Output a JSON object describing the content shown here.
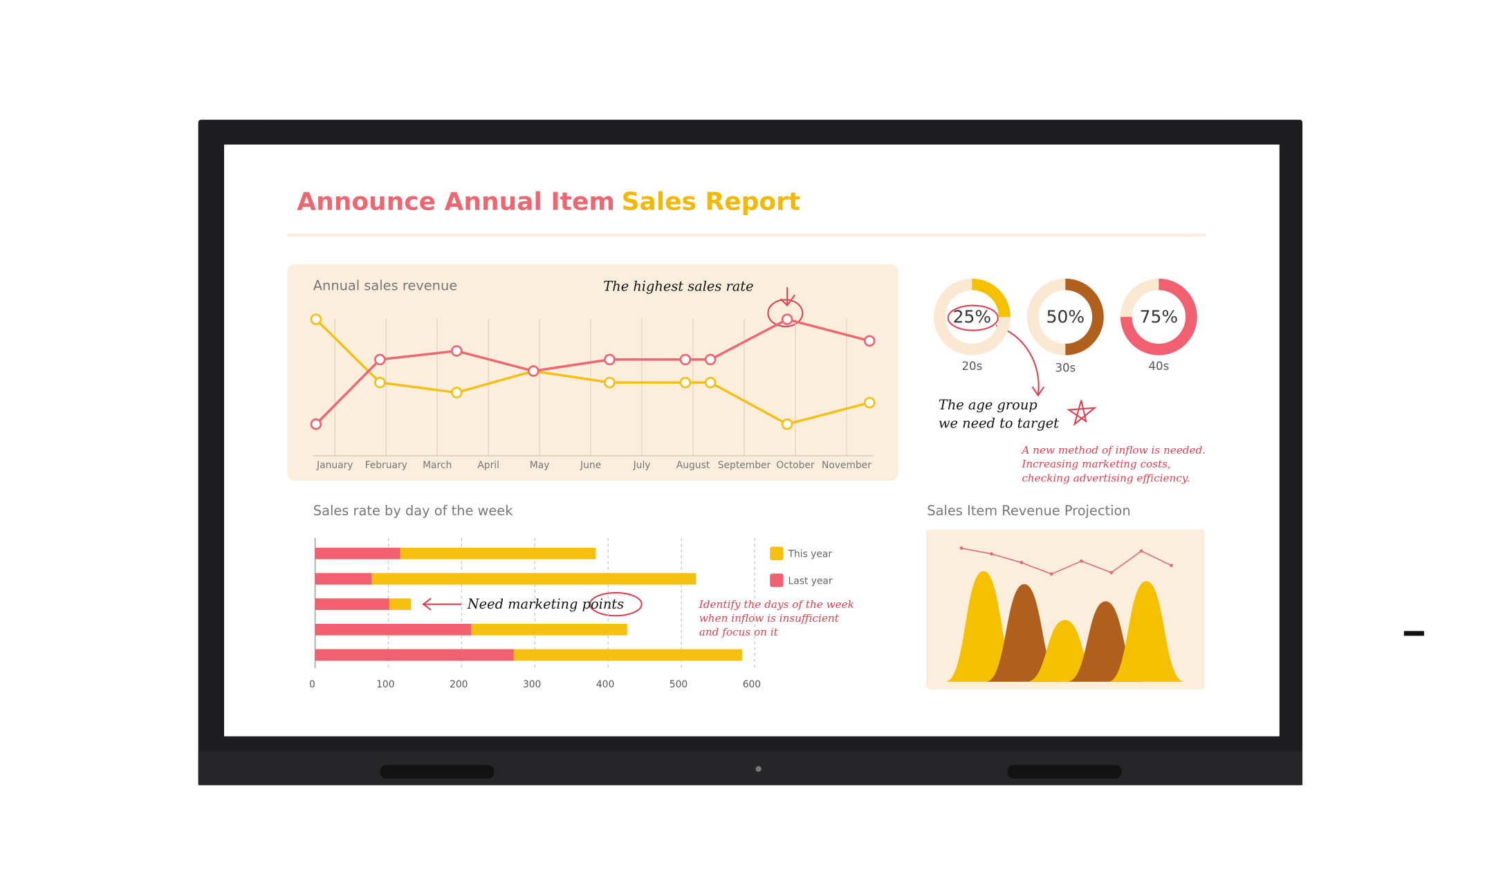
{
  "header": {
    "title_lead": "Announce Annual Item",
    "title_accent": "Sales Report"
  },
  "chart_data": [
    {
      "type": "line",
      "title": "Annual sales revenue",
      "x": [
        -0.37,
        0.88,
        2.38,
        3.88,
        5.37,
        6.85,
        7.34,
        8.84,
        10.45
      ],
      "xlim": [
        -0.5,
        10.6
      ],
      "xticks": [
        {
          "value": 0,
          "label": "January"
        },
        {
          "value": 1,
          "label": "February"
        },
        {
          "value": 2,
          "label": "March"
        },
        {
          "value": 3,
          "label": "April"
        },
        {
          "value": 4,
          "label": "May"
        },
        {
          "value": 5,
          "label": "June"
        },
        {
          "value": 6,
          "label": "July"
        },
        {
          "value": 7,
          "label": "August"
        },
        {
          "value": 8,
          "label": "September"
        },
        {
          "value": 9,
          "label": "October"
        },
        {
          "value": 10,
          "label": "November"
        }
      ],
      "ylim": [
        0,
        100
      ],
      "series": [
        {
          "color": "#f5c014",
          "values": [
            91,
            47,
            40,
            55,
            47,
            47,
            47,
            18,
            33
          ]
        },
        {
          "color": "#ee6670",
          "values": [
            18,
            63,
            69,
            55,
            63,
            63,
            63,
            91,
            76
          ]
        }
      ],
      "grid": true,
      "annotations": [
        "The highest sales rate"
      ]
    },
    {
      "type": "barh",
      "title": "Sales rate by day of the week",
      "categories": [
        null,
        null,
        null,
        null,
        null
      ],
      "series": [
        {
          "name": "This year",
          "color": "#f6c010",
          "values": [
            383,
            520,
            131,
            426,
            583
          ]
        },
        {
          "name": "Last year",
          "color": "#f06070",
          "values": [
            116,
            77,
            101,
            213,
            271
          ]
        }
      ],
      "xlim": [
        0,
        600
      ],
      "xticks": [
        0,
        100,
        200,
        300,
        400,
        500,
        600
      ],
      "grid": true,
      "annotations": [
        "Need marketing points",
        "Identify the days of the week",
        "when inflow is insufficient",
        "and focus on it"
      ]
    },
    {
      "type": "donut",
      "categories": [
        "20s",
        "30s",
        "40s"
      ],
      "values": [
        25,
        50,
        75
      ],
      "value_labels": [
        "25%",
        "50%",
        "75%"
      ],
      "colors": [
        "#f5c000",
        "#b0601c",
        "#f06070"
      ],
      "annotations": [
        "The age group",
        "we need to target",
        "A new method of inflow is needed.",
        "Increasing marketing costs,",
        "checking advertising efficiency."
      ]
    },
    {
      "type": "peaks",
      "title": "Sales Item Revenue Projection",
      "values": [
        77,
        68,
        43,
        56,
        70
      ],
      "colors": [
        "#f5c000",
        "#b0601c",
        "#f5c000",
        "#b0601c",
        "#f5c000"
      ],
      "ylim": [
        0,
        100
      ],
      "line": {
        "color": "#e0707a",
        "values": [
          93,
          89,
          83,
          75,
          84,
          76,
          91,
          81
        ]
      }
    }
  ]
}
